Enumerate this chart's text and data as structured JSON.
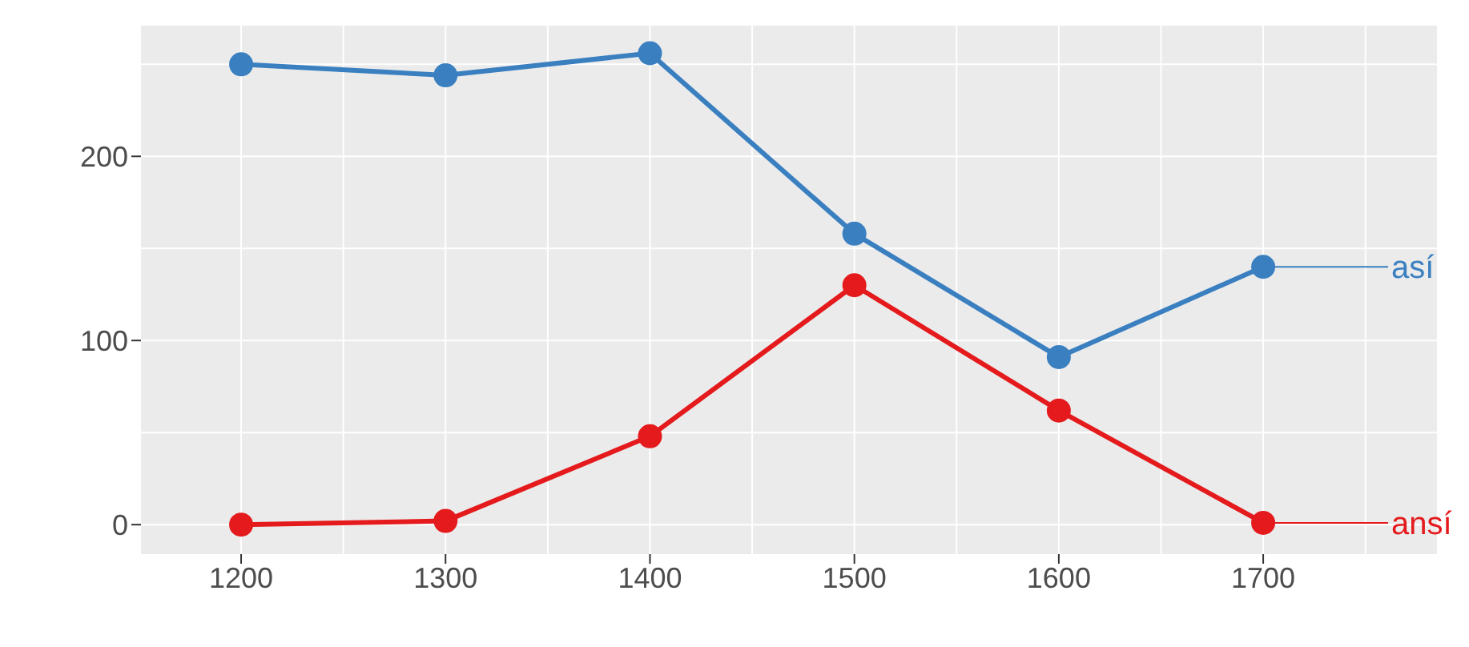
{
  "chart_data": {
    "type": "line",
    "x": [
      1200,
      1300,
      1400,
      1500,
      1600,
      1700
    ],
    "series": [
      {
        "name": "así",
        "color": "#3a7fc0",
        "values": [
          250,
          244,
          256,
          158,
          91,
          140
        ]
      },
      {
        "name": "ansí",
        "color": "#e41a1c",
        "values": [
          0,
          2,
          48,
          130,
          62,
          1
        ]
      }
    ],
    "xlim": [
      1151,
      1785
    ],
    "xticks": [
      1200,
      1300,
      1400,
      1500,
      1600,
      1700
    ],
    "ylim": [
      -16,
      271
    ],
    "yticks": [
      0,
      100,
      200
    ],
    "grid": true,
    "marker": "circle",
    "line_style": "solid",
    "legend": "right"
  }
}
